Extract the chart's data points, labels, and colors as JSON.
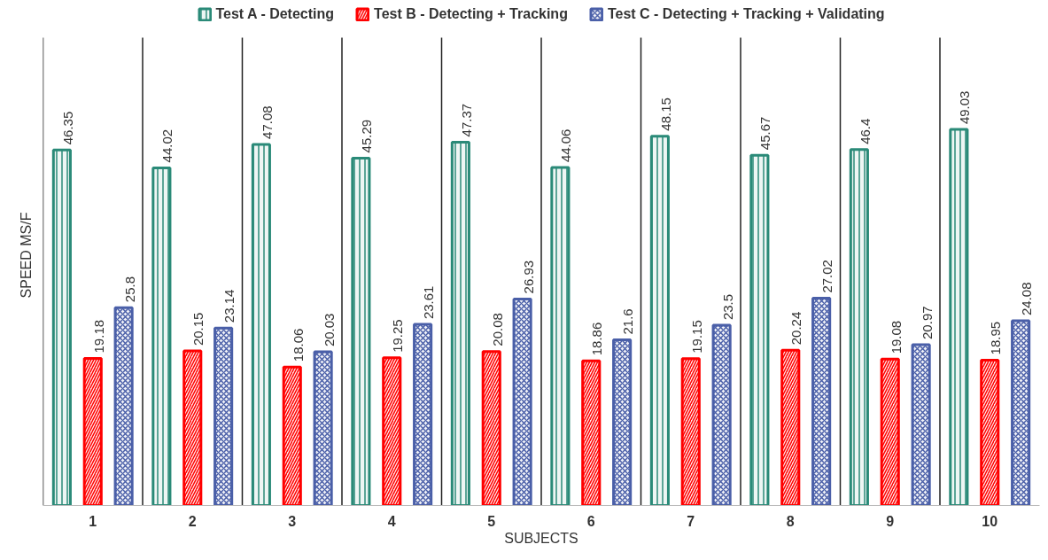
{
  "chart_data": {
    "type": "bar",
    "xlabel": "SUBJECTS",
    "ylabel": "SPEED MS/F",
    "categories": [
      "1",
      "2",
      "3",
      "4",
      "5",
      "6",
      "7",
      "8",
      "9",
      "10"
    ],
    "series": [
      {
        "name": "Test A - Detecting",
        "color": "#2a8a78",
        "values": [
          46.35,
          44.02,
          47.08,
          45.29,
          47.37,
          44.06,
          48.15,
          45.67,
          46.4,
          49.03
        ]
      },
      {
        "name": "Test B - Detecting + Tracking",
        "color": "#ff0000",
        "values": [
          19.18,
          20.15,
          18.06,
          19.25,
          20.08,
          18.86,
          19.15,
          20.24,
          19.08,
          18.95
        ]
      },
      {
        "name": "Test C - Detecting + Tracking + Validating",
        "color": "#4a5fa8",
        "values": [
          25.8,
          23.14,
          20.03,
          23.61,
          26.93,
          21.6,
          23.5,
          27.02,
          20.97,
          24.08
        ]
      }
    ],
    "ylim": [
      0,
      61
    ],
    "tick_labels": "x",
    "grid": "x",
    "legend": "top",
    "data_labels": true
  }
}
